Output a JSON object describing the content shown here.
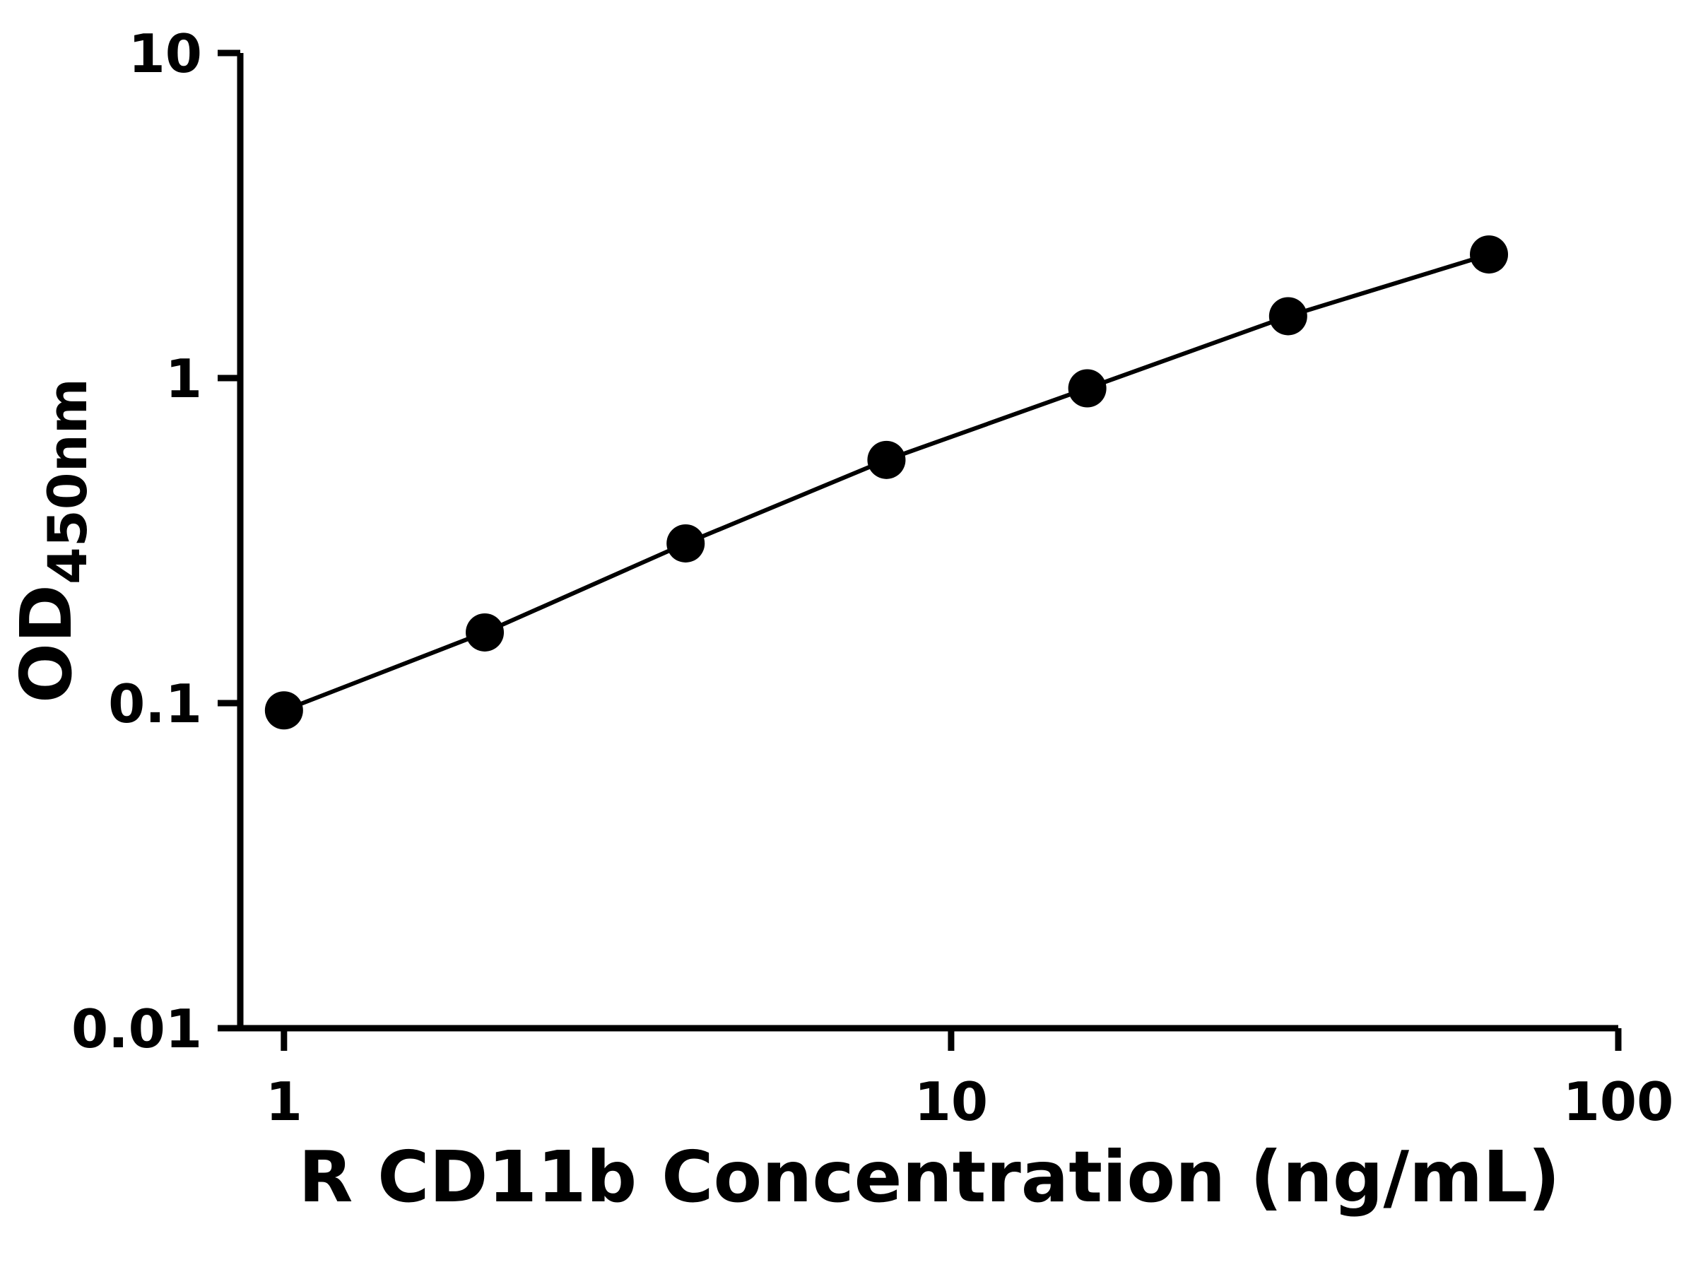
{
  "figure": {
    "background": "#ffffff"
  },
  "chart_data": {
    "type": "line",
    "xlabel": "R CD11b Concentration (ng/mL)",
    "ylabel_main": "OD",
    "ylabel_sub": "450nm",
    "x_scale": "log",
    "y_scale": "log",
    "xlim": [
      0.86,
      100
    ],
    "ylim": [
      0.01,
      10
    ],
    "x_ticks": [
      1,
      10,
      100
    ],
    "x_tick_labels": [
      "1",
      "10",
      "100"
    ],
    "y_ticks": [
      10,
      1,
      0.1,
      0.01
    ],
    "y_tick_labels": [
      "10",
      "1",
      "0.1",
      "0.01"
    ],
    "x": [
      1,
      2,
      4,
      8,
      16,
      32,
      64
    ],
    "y": [
      0.095,
      0.165,
      0.31,
      0.56,
      0.93,
      1.55,
      2.4
    ],
    "grid": false,
    "legend": false,
    "marker": "filled-circle",
    "marker_color": "#000000",
    "line_color": "#000000",
    "axis_color": "#000000"
  }
}
